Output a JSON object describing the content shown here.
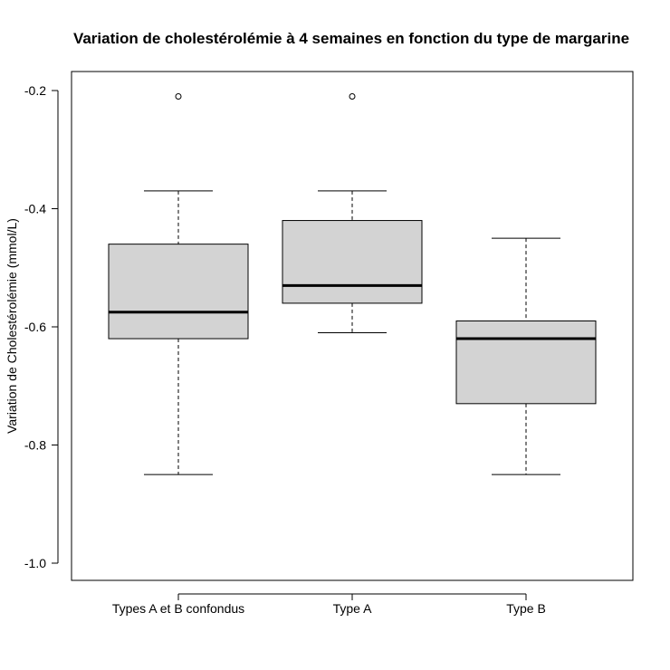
{
  "chart_data": {
    "type": "boxplot",
    "title": "Variation de cholestérolémie à 4 semaines en fonction du type de margarine",
    "xlabel": "",
    "ylabel": "Variation de Cholestérolémie (mmol/L)",
    "ylim": [
      -1.0,
      -0.2
    ],
    "yticks": [
      -1.0,
      -0.8,
      -0.6,
      -0.4,
      -0.2
    ],
    "ytick_labels": [
      "-1.0",
      "-0.8",
      "-0.6",
      "-0.4",
      "-0.2"
    ],
    "categories": [
      "Types A et B confondus",
      "Type A",
      "Type B"
    ],
    "box_color": "#d3d3d3",
    "boxes": [
      {
        "name": "Types A et B confondus",
        "whisker_low": -0.85,
        "q1": -0.62,
        "median": -0.575,
        "q3": -0.46,
        "whisker_high": -0.37,
        "outliers": [
          -0.21
        ]
      },
      {
        "name": "Type A",
        "whisker_low": -0.61,
        "q1": -0.56,
        "median": -0.53,
        "q3": -0.42,
        "whisker_high": -0.37,
        "outliers": [
          -0.21
        ]
      },
      {
        "name": "Type B",
        "whisker_low": -0.85,
        "q1": -0.73,
        "median": -0.62,
        "q3": -0.59,
        "whisker_high": -0.45,
        "outliers": []
      }
    ]
  }
}
